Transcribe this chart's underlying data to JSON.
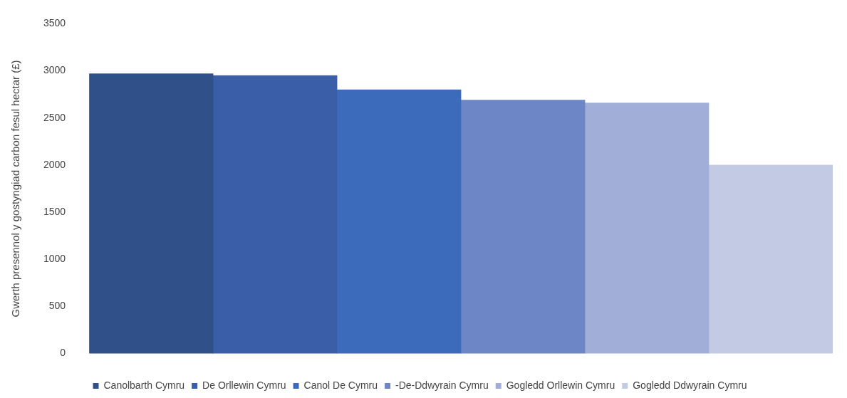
{
  "chart_data": {
    "type": "bar",
    "ylabel": "Gwerth presennol y gostyngiad carbon fesul hectar (£)",
    "categories": [
      null
    ],
    "series": [
      {
        "name": "Canolbarth Cymru",
        "color": "#2f5089",
        "values": [
          2970
        ]
      },
      {
        "name": "De Orllewin Cymru",
        "color": "#3a5fa8",
        "values": [
          2950
        ]
      },
      {
        "name": "Canol De Cymru",
        "color": "#3c6bbb",
        "values": [
          2800
        ]
      },
      {
        "name": "-De-Ddwyrain Cymru",
        "color": "#6d87c6",
        "values": [
          2690
        ]
      },
      {
        "name": "Gogledd Orllewin Cymru",
        "color": "#a1aed8",
        "values": [
          2660
        ]
      },
      {
        "name": "Gogledd Ddwyrain Cymru",
        "color": "#c3cae4",
        "values": [
          2000
        ]
      }
    ],
    "ylim": [
      0,
      3500
    ],
    "yticks": [
      0,
      500,
      1000,
      1500,
      2000,
      2500,
      3000,
      3500
    ],
    "grid": false,
    "legend": "bottom"
  }
}
